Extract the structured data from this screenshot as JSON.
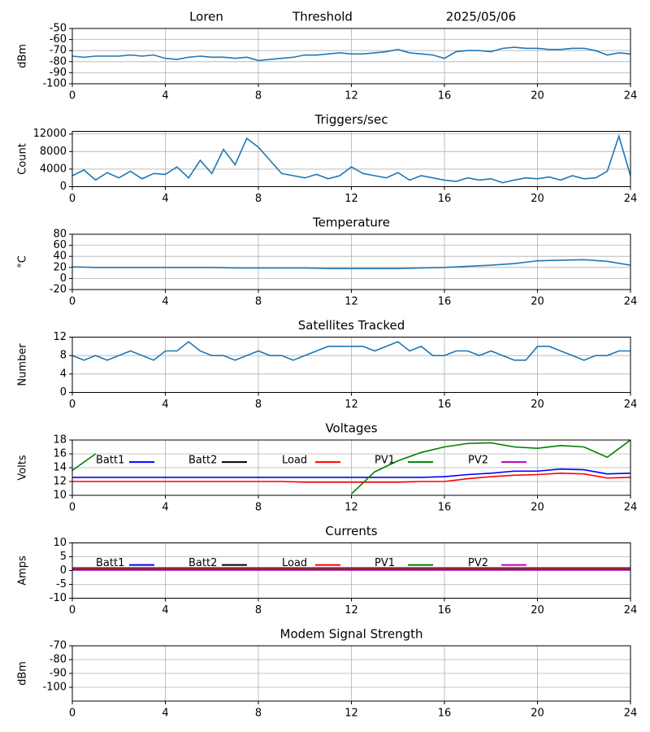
{
  "chart_data": [
    {
      "type": "line",
      "titles": [
        "Loren",
        "Threshold",
        "2025/05/06"
      ],
      "ylabel": "dBm",
      "x": [
        0,
        0.5,
        1,
        1.5,
        2,
        2.5,
        3,
        3.5,
        4,
        4.5,
        5,
        5.5,
        6,
        6.5,
        7,
        7.5,
        8,
        8.5,
        9,
        9.5,
        10,
        10.5,
        11,
        11.5,
        12,
        12.5,
        13,
        13.5,
        14,
        14.5,
        15,
        15.5,
        16,
        16.5,
        17,
        17.5,
        18,
        18.5,
        19,
        19.5,
        20,
        20.5,
        21,
        21.5,
        22,
        22.5,
        23,
        23.5,
        24
      ],
      "series": [
        {
          "color": "#1f77b4",
          "values": [
            -75,
            -76,
            -75,
            -75,
            -75,
            -74,
            -75,
            -74,
            -77,
            -78,
            -76,
            -75,
            -76,
            -76,
            -77,
            -76,
            -79,
            -78,
            -77,
            -76,
            -74,
            -74,
            -73,
            -72,
            -73,
            -73,
            -72,
            -71,
            -69,
            -72,
            -73,
            -74,
            -77,
            -71,
            -70,
            -70,
            -71,
            -68,
            -67,
            -68,
            -68,
            -69,
            -69,
            -68,
            -68,
            -70,
            -74,
            -72,
            -73
          ]
        }
      ],
      "xlim": [
        0,
        24
      ],
      "xticks": [
        0,
        4,
        8,
        12,
        16,
        20,
        24
      ],
      "ylim": [
        -100,
        -50
      ],
      "yticks": [
        -100,
        -90,
        -80,
        -70,
        -60,
        -50
      ],
      "grid": true
    },
    {
      "type": "line",
      "title": "Triggers/sec",
      "ylabel": "Count",
      "x": [
        0,
        0.5,
        1,
        1.5,
        2,
        2.5,
        3,
        3.5,
        4,
        4.5,
        5,
        5.5,
        6,
        6.5,
        7,
        7.5,
        8,
        8.5,
        9,
        9.5,
        10,
        10.5,
        11,
        11.5,
        12,
        12.5,
        13,
        13.5,
        14,
        14.5,
        15,
        15.5,
        16,
        16.5,
        17,
        17.5,
        18,
        18.5,
        19,
        19.5,
        20,
        20.5,
        21,
        21.5,
        22,
        22.5,
        23,
        23.5,
        24
      ],
      "series": [
        {
          "color": "#1f77b4",
          "values": [
            2500,
            3800,
            1500,
            3200,
            2000,
            3500,
            1800,
            3000,
            2800,
            4500,
            2000,
            6000,
            3000,
            8500,
            5000,
            11000,
            9000,
            6000,
            3000,
            2500,
            2000,
            2800,
            1800,
            2500,
            4500,
            3000,
            2500,
            2000,
            3200,
            1500,
            2500,
            2000,
            1500,
            1200,
            2000,
            1500,
            1800,
            900,
            1500,
            2000,
            1800,
            2200,
            1500,
            2500,
            1800,
            2000,
            3500,
            11500,
            2500
          ]
        }
      ],
      "xlim": [
        0,
        24
      ],
      "xticks": [
        0,
        4,
        8,
        12,
        16,
        20,
        24
      ],
      "ylim": [
        0,
        12600
      ],
      "yticks": [
        0,
        4000,
        8000,
        12000
      ],
      "grid": true
    },
    {
      "type": "line",
      "title": "Temperature",
      "ylabel": "°C",
      "x": [
        0,
        1,
        2,
        3,
        4,
        5,
        6,
        7,
        8,
        9,
        10,
        11,
        12,
        13,
        14,
        15,
        16,
        17,
        18,
        19,
        20,
        21,
        22,
        23,
        24
      ],
      "series": [
        {
          "color": "#1f77b4",
          "values": [
            21,
            20,
            20,
            20,
            20,
            20,
            20,
            19,
            19,
            19,
            19,
            18,
            18,
            18,
            18,
            19,
            20,
            22,
            24,
            27,
            32,
            33,
            34,
            31,
            24
          ]
        }
      ],
      "xlim": [
        0,
        24
      ],
      "xticks": [
        0,
        4,
        8,
        12,
        16,
        20,
        24
      ],
      "ylim": [
        -20,
        80
      ],
      "yticks": [
        -20,
        0,
        20,
        40,
        60,
        80
      ],
      "grid": true
    },
    {
      "type": "line",
      "title": "Satellites Tracked",
      "ylabel": "Number",
      "x": [
        0,
        0.5,
        1,
        1.5,
        2,
        2.5,
        3,
        3.5,
        4,
        4.5,
        5,
        5.5,
        6,
        6.5,
        7,
        7.5,
        8,
        8.5,
        9,
        9.5,
        10,
        10.5,
        11,
        11.5,
        12,
        12.5,
        13,
        13.5,
        14,
        14.5,
        15,
        15.5,
        16,
        16.5,
        17,
        17.5,
        18,
        18.5,
        19,
        19.5,
        20,
        20.5,
        21,
        21.5,
        22,
        22.5,
        23,
        23.5,
        24
      ],
      "series": [
        {
          "color": "#1f77b4",
          "values": [
            8,
            7,
            8,
            7,
            8,
            9,
            8,
            7,
            9,
            9,
            11,
            9,
            8,
            8,
            7,
            8,
            9,
            8,
            8,
            7,
            8,
            9,
            10,
            10,
            10,
            10,
            9,
            10,
            11,
            9,
            10,
            8,
            8,
            9,
            9,
            8,
            9,
            8,
            7,
            7,
            10,
            10,
            9,
            8,
            7,
            8,
            8,
            9,
            9
          ]
        }
      ],
      "xlim": [
        0,
        24
      ],
      "xticks": [
        0,
        4,
        8,
        12,
        16,
        20,
        24
      ],
      "ylim": [
        0,
        12
      ],
      "yticks": [
        0,
        4,
        8,
        12
      ],
      "grid": true
    },
    {
      "type": "line",
      "title": "Voltages",
      "ylabel": "Volts",
      "x": [
        0,
        1,
        2,
        3,
        4,
        5,
        6,
        7,
        8,
        9,
        10,
        11,
        12,
        13,
        14,
        15,
        16,
        17,
        18,
        19,
        20,
        21,
        22,
        23,
        24
      ],
      "series": [
        {
          "name": "Batt1",
          "color": "#0000ff",
          "values": [
            12.6,
            12.6,
            12.6,
            12.6,
            12.6,
            12.6,
            12.6,
            12.6,
            12.6,
            12.6,
            12.6,
            12.6,
            12.6,
            12.6,
            12.6,
            12.6,
            12.7,
            13.0,
            13.2,
            13.5,
            13.5,
            13.8,
            13.7,
            13.1,
            13.2
          ]
        },
        {
          "name": "Batt2",
          "color": "#000000"
        },
        {
          "name": "Load",
          "color": "#ff0000",
          "values": [
            12.0,
            12.0,
            12.0,
            12.0,
            12.0,
            12.0,
            12.0,
            12.0,
            12.0,
            12.0,
            11.9,
            11.9,
            11.9,
            11.9,
            11.9,
            12.0,
            12.0,
            12.4,
            12.7,
            12.9,
            13.0,
            13.2,
            13.1,
            12.5,
            12.6
          ]
        },
        {
          "name": "PV1",
          "color": "#008000",
          "values": [
            13.6,
            16.0,
            null,
            null,
            null,
            null,
            null,
            null,
            null,
            null,
            null,
            null,
            10.2,
            13.4,
            15.0,
            16.2,
            17.0,
            17.5,
            17.6,
            17.0,
            16.8,
            17.2,
            17.0,
            15.5,
            18.0
          ]
        },
        {
          "name": "PV2",
          "color": "#bf00bf"
        }
      ],
      "xlim": [
        0,
        24
      ],
      "xticks": [
        0,
        4,
        8,
        12,
        16,
        20,
        24
      ],
      "ylim": [
        10,
        18
      ],
      "yticks": [
        10,
        12,
        14,
        16,
        18
      ],
      "grid": true
    },
    {
      "type": "line",
      "title": "Currents",
      "ylabel": "Amps",
      "x": [
        0,
        4,
        8,
        12,
        16,
        20,
        24
      ],
      "series": [
        {
          "name": "Batt1",
          "color": "#0000ff",
          "values": [
            0.5,
            0.5,
            0.5,
            0.5,
            0.5,
            0.5,
            0.5
          ]
        },
        {
          "name": "Batt2",
          "color": "#000000",
          "values": [
            0.4,
            0.4,
            0.4,
            0.4,
            0.4,
            0.4,
            0.4
          ]
        },
        {
          "name": "Load",
          "color": "#ff0000",
          "values": [
            1.0,
            1.0,
            1.0,
            1.0,
            1.0,
            1.0,
            1.0
          ]
        },
        {
          "name": "PV1",
          "color": "#008000",
          "values": [
            0.3,
            0.3,
            0.3,
            0.3,
            0.3,
            0.3,
            0.3
          ]
        },
        {
          "name": "PV2",
          "color": "#bf00bf",
          "values": [
            0.2,
            0.2,
            0.2,
            0.2,
            0.2,
            0.2,
            0.2
          ]
        }
      ],
      "xlim": [
        0,
        24
      ],
      "xticks": [
        0,
        4,
        8,
        12,
        16,
        20,
        24
      ],
      "ylim": [
        -10,
        10
      ],
      "yticks": [
        -10,
        -5,
        0,
        5,
        10
      ],
      "grid": true
    },
    {
      "type": "line",
      "title": "Modem Signal Strength",
      "ylabel": "dBm",
      "series": [],
      "xlim": [
        0,
        24
      ],
      "xticks": [
        0,
        4,
        8,
        12,
        16,
        20,
        24
      ],
      "ylim": [
        -110,
        -70
      ],
      "yticks": [
        -100,
        -90,
        -80,
        -70
      ],
      "grid": true
    }
  ]
}
